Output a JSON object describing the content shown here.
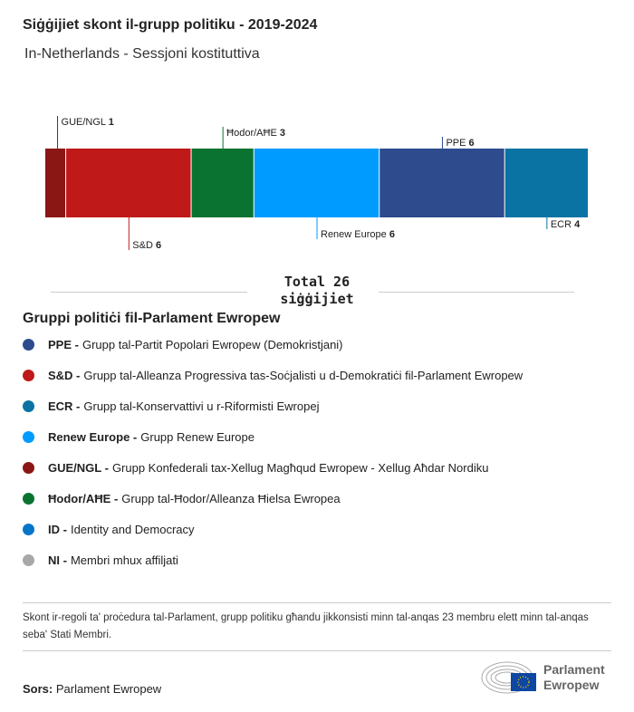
{
  "title": "Siġġijiet skont il-grupp politiku - 2019-2024",
  "subtitle": "In-Netherlands - Sessjoni kostituttiva",
  "chart_data": {
    "type": "bar",
    "orientation": "stacked-horizontal",
    "categories": [
      "GUE/NGL",
      "S&D",
      "Ħodor/AĦE",
      "Renew Europe",
      "PPE",
      "ECR"
    ],
    "values": [
      1,
      6,
      3,
      6,
      6,
      4
    ],
    "colors": [
      "#8b1714",
      "#c0191a",
      "#0b7332",
      "#009bff",
      "#2d4b8d",
      "#0a73a3"
    ],
    "total": 26
  },
  "total_line1": "Total 26",
  "total_line2": "siġġijiet",
  "legend_title": "Gruppi politiċi fil-Parlament Ewropew",
  "legend": [
    {
      "abbr": "PPE -",
      "name": "Grupp tal-Partit Popolari Ewropew (Demokristjani)",
      "color": "#2d4b8d"
    },
    {
      "abbr": "S&D -",
      "name": "Grupp tal-Alleanza Progressiva tas-Soċjalisti u d-Demokratiċi fil-Parlament Ewropew",
      "color": "#c0191a"
    },
    {
      "abbr": "ECR -",
      "name": "Grupp tal-Konservattivi u r-Riformisti Ewropej",
      "color": "#0a73a3"
    },
    {
      "abbr": "Renew Europe -",
      "name": "Grupp Renew Europe",
      "color": "#009bff"
    },
    {
      "abbr": "GUE/NGL -",
      "name": "Grupp Konfederali tax-Xellug Magħqud Ewropew - Xellug Aħdar Nordiku",
      "color": "#8b1714"
    },
    {
      "abbr": "Ħodor/AĦE -",
      "name": "Grupp tal-Ħodor/Alleanza Ħielsa Ewropea",
      "color": "#0b7332"
    },
    {
      "abbr": "ID -",
      "name": "Identity and Democracy",
      "color": "#0575c9"
    },
    {
      "abbr": "NI -",
      "name": "Membri mhux affiljati",
      "color": "#a8a8a8"
    }
  ],
  "note": "Skont ir-regoli ta' proċedura tal-Parlament, grupp politiku għandu jikkonsisti minn tal-anqas 23 membru elett minn tal-anqas seba' Stati Membri.",
  "source_label": "Sors:",
  "source": "Parlament Ewropew",
  "logo_line1": "Parlament",
  "logo_line2": "Ewropew"
}
